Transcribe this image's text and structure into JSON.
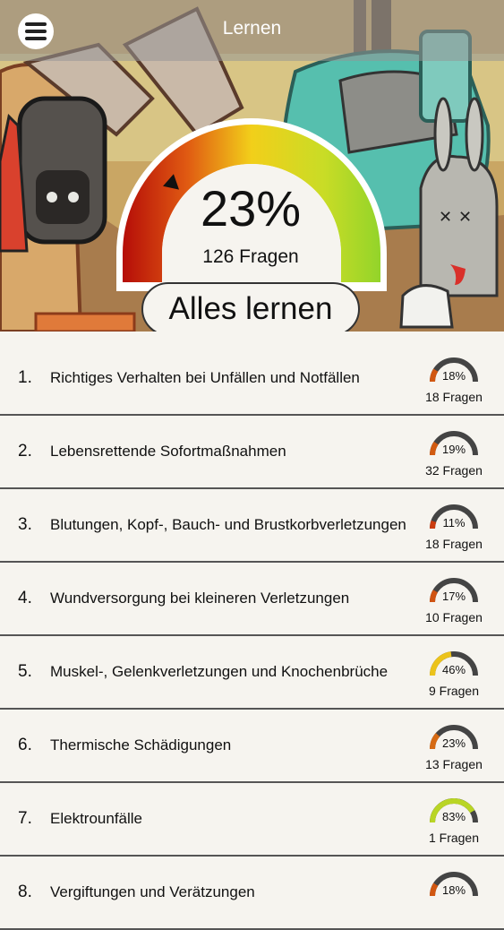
{
  "header": {
    "title": "Lernen"
  },
  "overview": {
    "percent": "23%",
    "percent_value": 23,
    "question_count": "126 Fragen",
    "learn_all_label": "Alles lernen"
  },
  "colors": {
    "gauge_track": "#444444",
    "gauge_red": "#c0120b",
    "gauge_yellow": "#f0d21c",
    "gauge_green": "#9cd62a",
    "background": "#f6f4ef"
  },
  "topics": [
    {
      "number": "1.",
      "title": "Richtiges Verhalten bei Unfällen und Notfällen",
      "percent": "18%",
      "percent_value": 18,
      "count": "18 Fragen"
    },
    {
      "number": "2.",
      "title": "Lebensrettende Sofortmaßnahmen",
      "percent": "19%",
      "percent_value": 19,
      "count": "32 Fragen"
    },
    {
      "number": "3.",
      "title": "Blutungen, Kopf-, Bauch- und Brustkorbverletzungen",
      "percent": "11%",
      "percent_value": 11,
      "count": "18 Fragen"
    },
    {
      "number": "4.",
      "title": "Wundversorgung bei kleineren Verletzungen",
      "percent": "17%",
      "percent_value": 17,
      "count": "10 Fragen"
    },
    {
      "number": "5.",
      "title": "Muskel-, Gelenkverletzungen und Knochenbrüche",
      "percent": "46%",
      "percent_value": 46,
      "count": "9 Fragen"
    },
    {
      "number": "6.",
      "title": "Thermische Schädigungen",
      "percent": "23%",
      "percent_value": 23,
      "count": "13 Fragen"
    },
    {
      "number": "7.",
      "title": "Elektrounfälle",
      "percent": "83%",
      "percent_value": 83,
      "count": "1 Fragen"
    },
    {
      "number": "8.",
      "title": "Vergiftungen und Verätzungen",
      "percent": "18%",
      "percent_value": 18,
      "count": ""
    }
  ]
}
